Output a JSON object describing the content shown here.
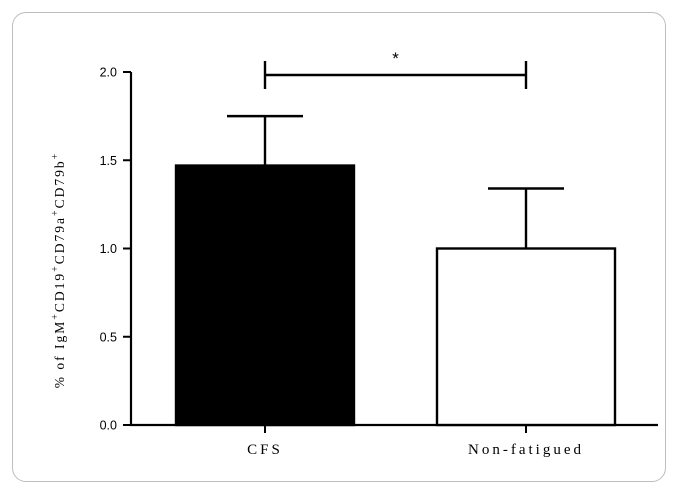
{
  "chart_data": {
    "type": "bar",
    "categories": [
      "CFS",
      "Non-fatigued"
    ],
    "values": [
      1.47,
      1.0
    ],
    "errors": [
      0.28,
      0.34
    ],
    "bar_colors": [
      "#000000",
      "#ffffff"
    ],
    "ylim": [
      0,
      2.0
    ],
    "yticks": [
      {
        "value": 0.0,
        "label": "0.0"
      },
      {
        "value": 0.5,
        "label": "0.5"
      },
      {
        "value": 1.0,
        "label": "1.0"
      },
      {
        "value": 1.5,
        "label": "1.5"
      },
      {
        "value": 2.0,
        "label": "2.0"
      }
    ],
    "ylabel_parts": [
      {
        "text": "% of IgM",
        "sup": false
      },
      {
        "text": "+",
        "sup": true
      },
      {
        "text": "CD19",
        "sup": false
      },
      {
        "text": "+",
        "sup": true
      },
      {
        "text": "CD79a",
        "sup": false
      },
      {
        "text": "+",
        "sup": true
      },
      {
        "text": "CD79b",
        "sup": false
      },
      {
        "text": "+",
        "sup": true
      }
    ],
    "significance": {
      "between": [
        "CFS",
        "Non-fatigued"
      ],
      "label": "*"
    },
    "grid": false,
    "title": "",
    "xlabel": ""
  }
}
